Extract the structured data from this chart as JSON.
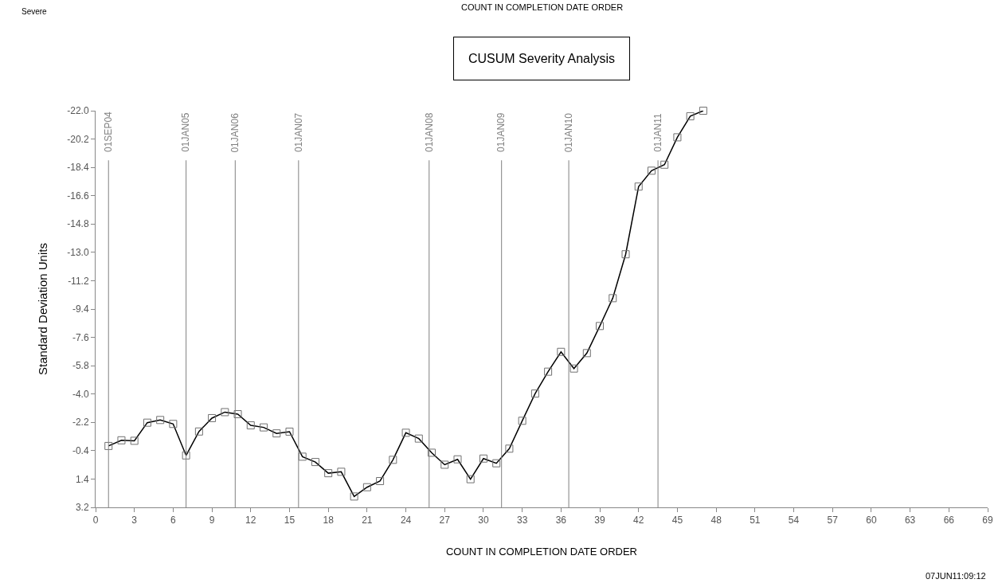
{
  "chart_data": {
    "type": "line",
    "title": "CUSUM Severity Analysis",
    "xlabel": "COUNT IN COMPLETION DATE ORDER",
    "ylabel": "Standard Deviation Units",
    "annotations": [
      "Severe",
      "COUNT IN COMPLETION DATE ORDER",
      "07JUN11:09:12"
    ],
    "x": [
      1,
      2,
      3,
      4,
      5,
      6,
      7,
      8,
      9,
      10,
      11,
      12,
      13,
      14,
      15,
      16,
      17,
      18,
      19,
      20,
      21,
      22,
      23,
      24,
      25,
      26,
      27,
      28,
      29,
      30,
      31,
      32,
      33,
      34,
      35,
      36,
      37,
      38,
      39,
      40,
      41,
      42,
      43,
      44,
      45,
      46,
      47
    ],
    "series": [
      {
        "color": "#000000",
        "values": [
          -0.7,
          -1.06,
          -1.03,
          -2.18,
          -2.35,
          -2.1,
          -0.1,
          -1.62,
          -2.47,
          -2.85,
          -2.72,
          -2.01,
          -1.88,
          -1.5,
          -1.61,
          -0.02,
          0.32,
          1.03,
          0.94,
          2.51,
          1.92,
          1.53,
          0.18,
          -1.54,
          -1.17,
          -0.27,
          0.49,
          0.15,
          1.41,
          0.1,
          0.4,
          -0.53,
          -2.3,
          -4.03,
          -5.42,
          -6.68,
          -5.62,
          -6.6,
          -8.32,
          -10.09,
          -12.88,
          -17.18,
          -18.19,
          -18.57,
          -20.31,
          -21.65,
          -22.0
        ]
      }
    ],
    "marker": "square",
    "xlim": [
      0,
      69
    ],
    "xticks": [
      0,
      3,
      6,
      9,
      12,
      15,
      18,
      21,
      24,
      27,
      30,
      33,
      36,
      39,
      42,
      45,
      48,
      51,
      54,
      57,
      60,
      63,
      66,
      69
    ],
    "ylim": [
      3.2,
      -22.0
    ],
    "yticks": [
      3.2,
      1.4,
      -0.4,
      -2.2,
      {
        "value": -4,
        "label": "-4.0"
      },
      -5.8,
      -7.6,
      -9.4,
      -11.2,
      {
        "value": -13,
        "label": "-13.0"
      },
      -14.8,
      -16.6,
      -18.4,
      -20.2,
      {
        "value": -22,
        "label": "-22.0"
      }
    ],
    "ref_lines": [
      {
        "axis": "x",
        "value": 1,
        "label": "01SEP04",
        "color": "#808080"
      },
      {
        "axis": "x",
        "value": 7,
        "label": "01JAN05",
        "color": "#808080"
      },
      {
        "axis": "x",
        "value": 10.8,
        "label": "01JAN06",
        "color": "#808080"
      },
      {
        "axis": "x",
        "value": 15.7,
        "label": "01JAN07",
        "color": "#808080"
      },
      {
        "axis": "x",
        "value": 25.8,
        "label": "01JAN08",
        "color": "#808080"
      },
      {
        "axis": "x",
        "value": 31.4,
        "label": "01JAN09",
        "color": "#808080"
      },
      {
        "axis": "x",
        "value": 36.6,
        "label": "01JAN10",
        "color": "#808080"
      },
      {
        "axis": "x",
        "value": 43.5,
        "label": "01JAN11",
        "color": "#808080"
      }
    ],
    "line_style": "solid"
  }
}
